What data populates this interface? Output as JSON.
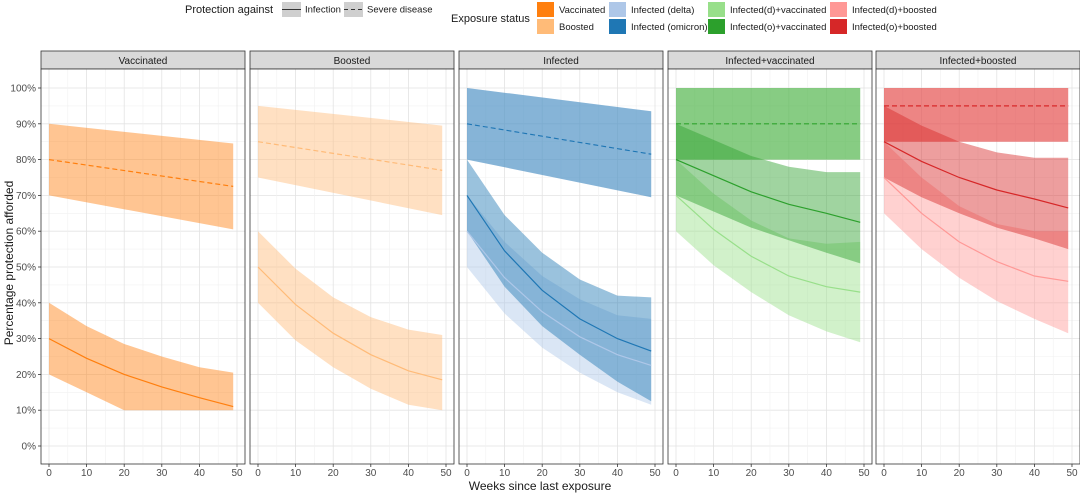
{
  "chart_data": {
    "type": "line",
    "xlabel": "Weeks since last exposure",
    "ylabel": "Percentage protection afforded",
    "xlim": [
      0,
      50
    ],
    "ylim": [
      0,
      100
    ],
    "x_ticks": [
      0,
      10,
      20,
      30,
      40,
      50
    ],
    "y_ticks": [
      0,
      10,
      20,
      30,
      40,
      50,
      60,
      70,
      80,
      90,
      100
    ],
    "y_tick_suffix": "%",
    "grid": true,
    "legend_position": "top",
    "protection_legend": {
      "title": "Protection against",
      "entries": [
        {
          "label": "Infection",
          "linetype": "solid"
        },
        {
          "label": "Severe disease",
          "linetype": "dashed"
        }
      ]
    },
    "exposure_legend": {
      "title": "Exposure status",
      "entries": [
        {
          "label": "Vaccinated",
          "color": "#ff7f0e"
        },
        {
          "label": "Boosted",
          "color": "#ffbb78"
        },
        {
          "label": "Infected (delta)",
          "color": "#aec7e8"
        },
        {
          "label": "Infected (omicron)",
          "color": "#1f77b4"
        },
        {
          "label": "Infected(d)+vaccinated",
          "color": "#98df8a"
        },
        {
          "label": "Infected(o)+vaccinated",
          "color": "#2ca02c"
        },
        {
          "label": "Infected(d)+boosted",
          "color": "#ff9896"
        },
        {
          "label": "Infected(o)+boosted",
          "color": "#d62728"
        }
      ]
    },
    "panels": [
      {
        "title": "Vaccinated",
        "series": [
          {
            "status": "Vaccinated",
            "protection": "Severe disease",
            "color": "#ff7f0e",
            "x": [
              0,
              49
            ],
            "y": [
              80,
              72.5
            ],
            "lower": [
              70,
              60.5
            ],
            "upper": [
              90,
              84.5
            ]
          },
          {
            "status": "Vaccinated",
            "protection": "Infection",
            "color": "#ff7f0e",
            "x": [
              0,
              10,
              20,
              30,
              40,
              49
            ],
            "y": [
              30,
              24.5,
              20,
              16.5,
              13.5,
              11
            ],
            "lower": [
              20,
              15,
              10,
              10,
              10,
              10
            ],
            "upper": [
              40,
              33.5,
              28.5,
              25,
              22,
              20.5
            ]
          }
        ]
      },
      {
        "title": "Boosted",
        "series": [
          {
            "status": "Boosted",
            "protection": "Severe disease",
            "color": "#ffbb78",
            "x": [
              0,
              49
            ],
            "y": [
              85,
              77
            ],
            "lower": [
              75,
              64.5
            ],
            "upper": [
              95,
              89.5
            ]
          },
          {
            "status": "Boosted",
            "protection": "Infection",
            "color": "#ffbb78",
            "x": [
              0,
              10,
              20,
              30,
              40,
              49
            ],
            "y": [
              50,
              39.5,
              31.5,
              25.5,
              21,
              18.5
            ],
            "lower": [
              40,
              29.5,
              22,
              16,
              11.5,
              10
            ],
            "upper": [
              60,
              49.5,
              41.5,
              36,
              32.5,
              31
            ]
          }
        ]
      },
      {
        "title": "Infected",
        "series": [
          {
            "status": "Infected (delta)",
            "protection": "Severe disease",
            "color": "#aec7e8",
            "x": [
              0,
              49
            ],
            "y": [
              90,
              81.5
            ],
            "lower": [
              80,
              69.5
            ],
            "upper": [
              100,
              93.5
            ]
          },
          {
            "status": "Infected (omicron)",
            "protection": "Severe disease",
            "color": "#1f77b4",
            "x": [
              0,
              49
            ],
            "y": [
              90,
              81.5
            ],
            "lower": [
              80,
              69.5
            ],
            "upper": [
              100,
              93.5
            ]
          },
          {
            "status": "Infected (delta)",
            "protection": "Infection",
            "color": "#aec7e8",
            "x": [
              0,
              10,
              20,
              30,
              40,
              49
            ],
            "y": [
              60,
              47,
              37.5,
              30.5,
              25.5,
              22.5
            ],
            "lower": [
              50,
              37,
              27.5,
              20.5,
              15,
              11.5
            ],
            "upper": [
              70,
              57,
              47.5,
              41,
              36.5,
              35.5
            ]
          },
          {
            "status": "Infected (omicron)",
            "protection": "Infection",
            "color": "#1f77b4",
            "x": [
              0,
              10,
              20,
              30,
              40,
              49
            ],
            "y": [
              70,
              54.5,
              43.5,
              35.5,
              30,
              26.5
            ],
            "lower": [
              60,
              44.5,
              33.5,
              25.5,
              18,
              12.5
            ],
            "upper": [
              80,
              64.5,
              54,
              46.5,
              42,
              41.5
            ]
          }
        ]
      },
      {
        "title": "Infected+vaccinated",
        "series": [
          {
            "status": "Infected(d)+vaccinated",
            "protection": "Severe disease",
            "color": "#98df8a",
            "x": [
              0,
              49
            ],
            "y": [
              90,
              90
            ],
            "lower": [
              80,
              80
            ],
            "upper": [
              100,
              100
            ]
          },
          {
            "status": "Infected(o)+vaccinated",
            "protection": "Severe disease",
            "color": "#2ca02c",
            "x": [
              0,
              49
            ],
            "y": [
              90,
              90
            ],
            "lower": [
              80,
              80
            ],
            "upper": [
              100,
              100
            ]
          },
          {
            "status": "Infected(d)+vaccinated",
            "protection": "Infection",
            "color": "#98df8a",
            "x": [
              0,
              10,
              20,
              30,
              40,
              49
            ],
            "y": [
              70,
              60.5,
              53,
              47.5,
              44.5,
              43
            ],
            "lower": [
              60,
              50.5,
              43,
              36.5,
              32,
              29
            ],
            "upper": [
              80,
              70.5,
              63,
              58,
              56.5,
              57
            ]
          },
          {
            "status": "Infected(o)+vaccinated",
            "protection": "Infection",
            "color": "#2ca02c",
            "x": [
              0,
              10,
              20,
              30,
              40,
              49
            ],
            "y": [
              80,
              75.5,
              71,
              67.5,
              65,
              62.5
            ],
            "lower": [
              70,
              65.5,
              61,
              57.5,
              54,
              51
            ],
            "upper": [
              90,
              85.5,
              81,
              78,
              76.5,
              76.5
            ]
          }
        ]
      },
      {
        "title": "Infected+boosted",
        "series": [
          {
            "status": "Infected(d)+boosted",
            "protection": "Severe disease",
            "color": "#ff9896",
            "x": [
              0,
              49
            ],
            "y": [
              95,
              95
            ],
            "lower": [
              85,
              85
            ],
            "upper": [
              100,
              100
            ]
          },
          {
            "status": "Infected(o)+boosted",
            "protection": "Severe disease",
            "color": "#d62728",
            "x": [
              0,
              49
            ],
            "y": [
              95,
              95
            ],
            "lower": [
              85,
              85
            ],
            "upper": [
              100,
              100
            ]
          },
          {
            "status": "Infected(d)+boosted",
            "protection": "Infection",
            "color": "#ff9896",
            "x": [
              0,
              10,
              20,
              30,
              40,
              49
            ],
            "y": [
              75,
              65,
              57,
              51.5,
              47.5,
              46
            ],
            "lower": [
              65,
              55,
              47,
              40.5,
              35.5,
              31.5
            ],
            "upper": [
              85,
              75,
              67,
              62,
              60,
              60
            ]
          },
          {
            "status": "Infected(o)+boosted",
            "protection": "Infection",
            "color": "#d62728",
            "x": [
              0,
              10,
              20,
              30,
              40,
              49
            ],
            "y": [
              85,
              79.5,
              75,
              71.5,
              69,
              66.5
            ],
            "lower": [
              75,
              69.5,
              65,
              61,
              58,
              55
            ],
            "upper": [
              95,
              89.5,
              85,
              82,
              80.5,
              80.5
            ]
          }
        ]
      }
    ]
  }
}
